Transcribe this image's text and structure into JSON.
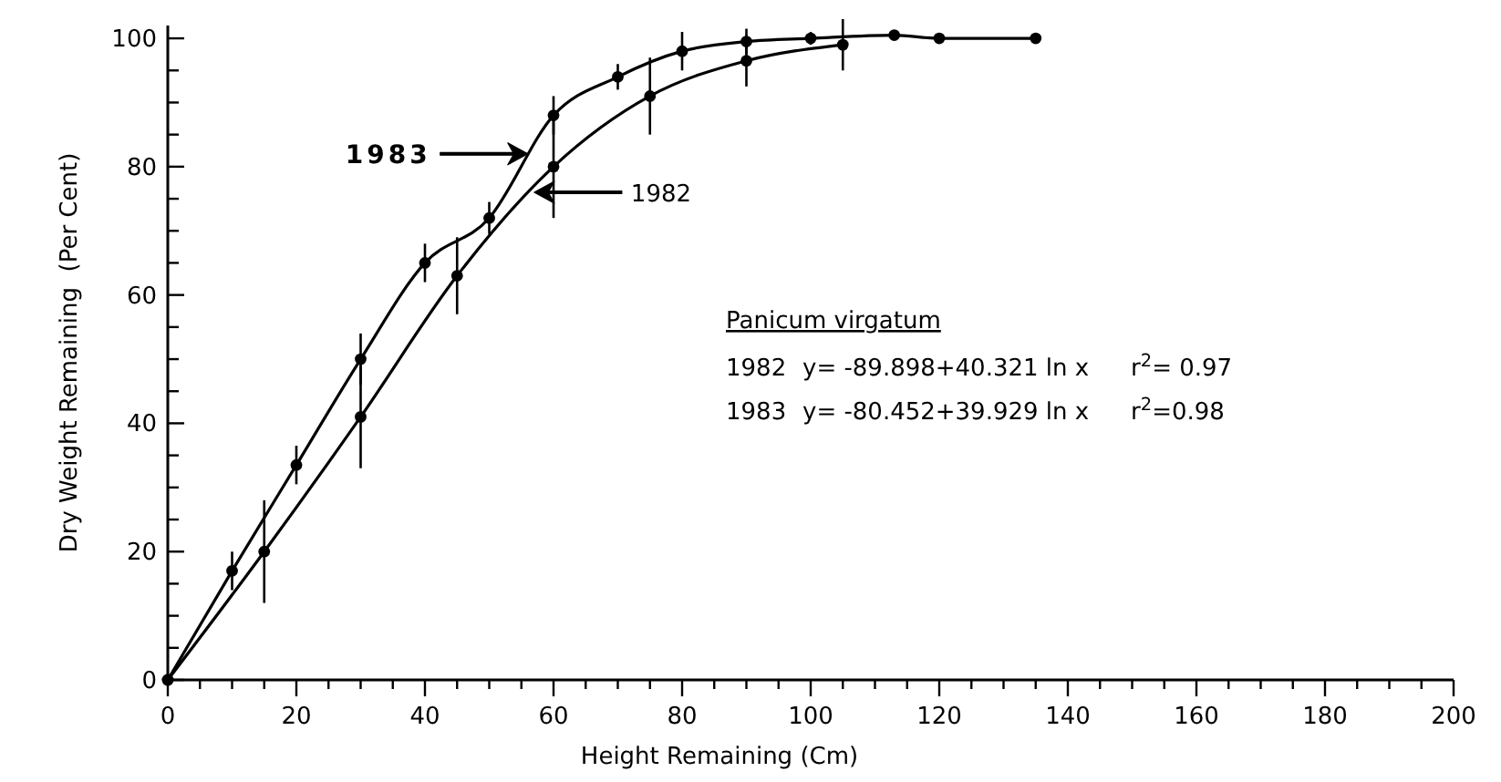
{
  "chart_data": {
    "type": "line",
    "xlabel": "Height Remaining  (Cm)",
    "ylabel": "Dry Weight Remaining  (Per Cent)",
    "xlim": [
      0,
      200
    ],
    "ylim": [
      0,
      102
    ],
    "xticks": [
      0,
      {
        "value": 5,
        "label": null
      },
      {
        "value": 10,
        "label": null
      },
      {
        "value": 15,
        "label": null
      },
      20,
      {
        "value": 25,
        "label": null
      },
      {
        "value": 30,
        "label": null
      },
      {
        "value": 35,
        "label": null
      },
      40,
      {
        "value": 45,
        "label": null
      },
      {
        "value": 50,
        "label": null
      },
      {
        "value": 55,
        "label": null
      },
      60,
      {
        "value": 65,
        "label": null
      },
      {
        "value": 70,
        "label": null
      },
      {
        "value": 75,
        "label": null
      },
      80,
      {
        "value": 85,
        "label": null
      },
      {
        "value": 90,
        "label": null
      },
      {
        "value": 95,
        "label": null
      },
      100,
      {
        "value": 105,
        "label": null
      },
      {
        "value": 110,
        "label": null
      },
      {
        "value": 115,
        "label": null
      },
      120,
      {
        "value": 125,
        "label": null
      },
      {
        "value": 130,
        "label": null
      },
      {
        "value": 135,
        "label": null
      },
      140,
      {
        "value": 145,
        "label": null
      },
      {
        "value": 150,
        "label": null
      },
      {
        "value": 155,
        "label": null
      },
      160,
      {
        "value": 165,
        "label": null
      },
      {
        "value": 170,
        "label": null
      },
      {
        "value": 175,
        "label": null
      },
      180,
      {
        "value": 185,
        "label": null
      },
      {
        "value": 190,
        "label": null
      },
      {
        "value": 195,
        "label": null
      },
      200
    ],
    "yticks": [
      0,
      {
        "value": 5,
        "label": null
      },
      {
        "value": 10,
        "label": null
      },
      {
        "value": 15,
        "label": null
      },
      20,
      {
        "value": 25,
        "label": null
      },
      {
        "value": 30,
        "label": null
      },
      {
        "value": 35,
        "label": null
      },
      40,
      {
        "value": 45,
        "label": null
      },
      {
        "value": 50,
        "label": null
      },
      {
        "value": 55,
        "label": null
      },
      60,
      {
        "value": 65,
        "label": null
      },
      {
        "value": 70,
        "label": null
      },
      {
        "value": 75,
        "label": null
      },
      80,
      {
        "value": 85,
        "label": null
      },
      {
        "value": 90,
        "label": null
      },
      {
        "value": 95,
        "label": null
      },
      100
    ],
    "grid": false,
    "marker": "circle",
    "line_style": "solid",
    "series": [
      {
        "color": "#000000",
        "x": [
          0,
          10,
          20,
          30,
          40,
          50,
          60,
          70,
          80,
          90,
          100,
          113,
          120,
          135
        ],
        "values": [
          0,
          17,
          33.5,
          50,
          65,
          72,
          88,
          94,
          98,
          99.5,
          100,
          100.5,
          100,
          100
        ],
        "errors": [
          null,
          3,
          3,
          4,
          3,
          2.5,
          3,
          2,
          3,
          2,
          1,
          null,
          null,
          null
        ]
      },
      {
        "color": "#000000",
        "x": [
          0,
          15,
          30,
          45,
          60,
          75,
          90,
          105
        ],
        "values": [
          0,
          20,
          41,
          63,
          80,
          91,
          96.5,
          99
        ],
        "errors": [
          null,
          8,
          8,
          6,
          8,
          6,
          4,
          4
        ]
      }
    ],
    "annotations": [
      "1983",
      "1982",
      "Panicum virgatum",
      "1982",
      "y= -89.898+40.321 ln x",
      "r$^{2}$= 0.97",
      "1983",
      "y= -80.452+39.929 ln x",
      "r$^{2}$=0.98"
    ]
  }
}
